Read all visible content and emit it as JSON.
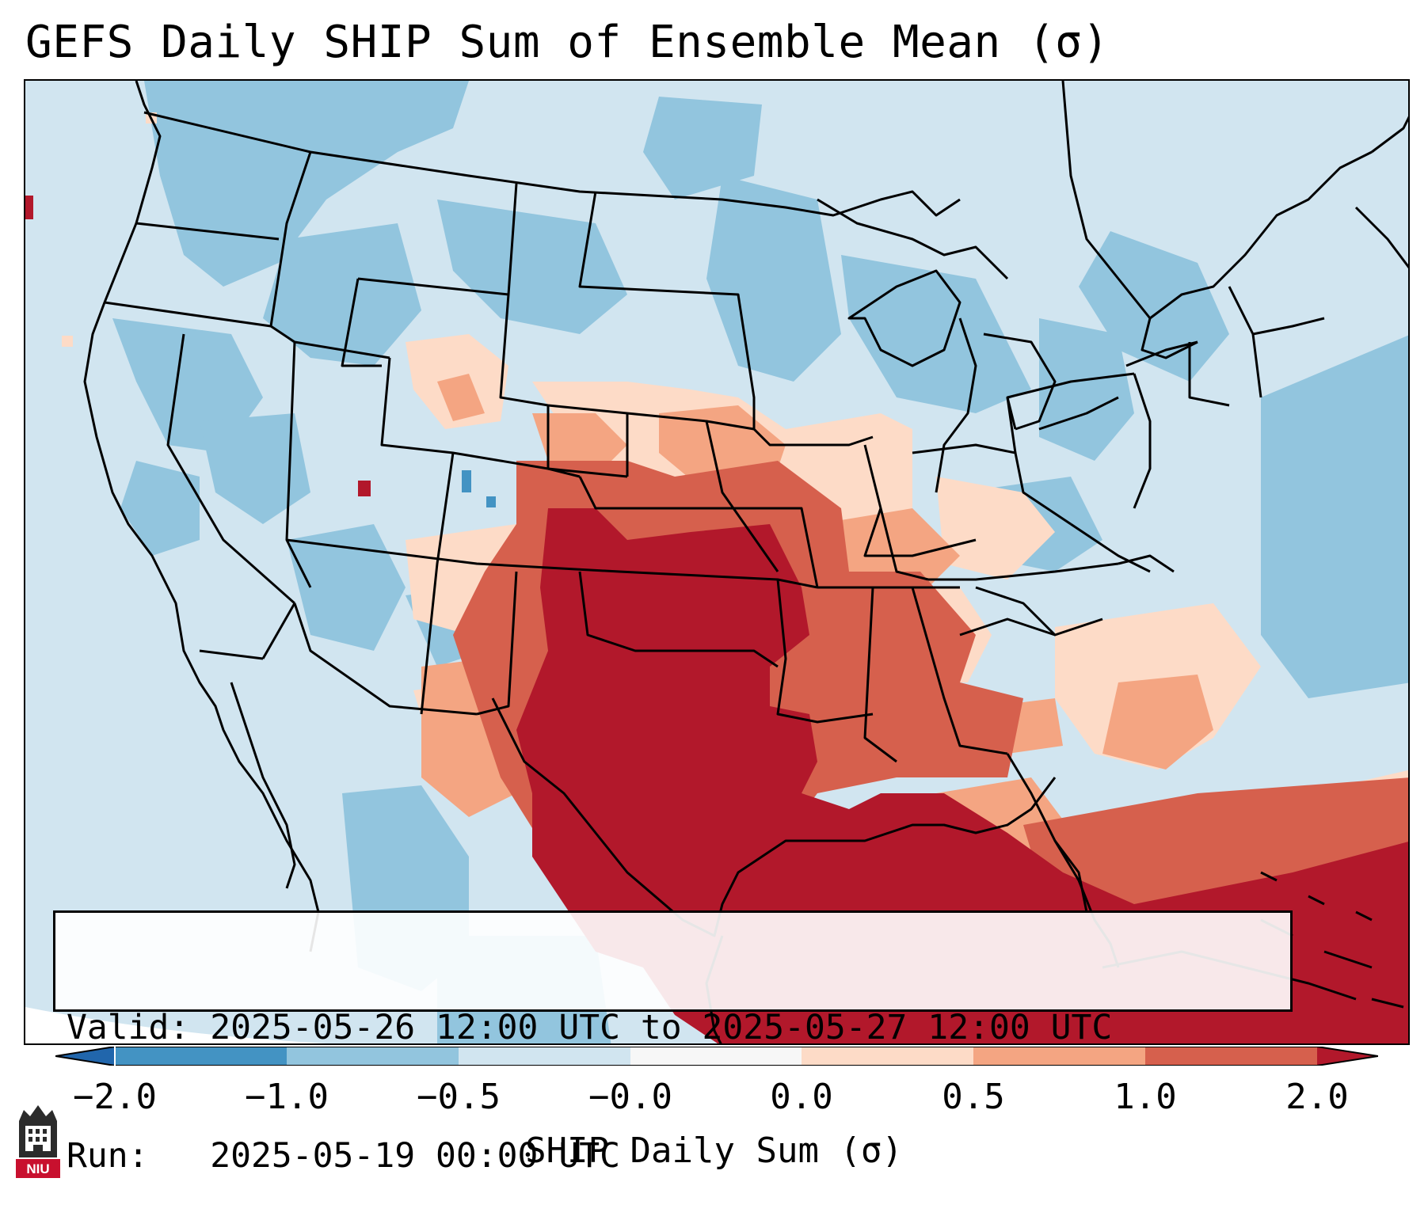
{
  "title": "GEFS Daily SHIP Sum of Ensemble Mean (σ)",
  "info": {
    "valid_line": "Valid: 2025-05-26 12:00 UTC to 2025-05-27 12:00 UTC",
    "run_line": "Run:   2025-05-19 00:00 UTC"
  },
  "colorbar": {
    "label": "SHIP Daily Sum (σ)",
    "ticks": [
      "−2.0",
      "−1.0",
      "−0.5",
      "−0.0",
      "0.0",
      "0.5",
      "1.0",
      "2.0"
    ],
    "bins": [
      {
        "range": "< -2.0",
        "color": "#2166ac"
      },
      {
        "range": "-2.0 to -1.0",
        "color": "#4393c3"
      },
      {
        "range": "-1.0 to -0.5",
        "color": "#92c5de"
      },
      {
        "range": "-0.5 to -0.0",
        "color": "#d1e5f0"
      },
      {
        "range": "-0.0 to 0.0",
        "color": "#f7f7f7"
      },
      {
        "range": "0.0 to 0.5",
        "color": "#fddbc7"
      },
      {
        "range": "0.5 to 1.0",
        "color": "#f4a582"
      },
      {
        "range": "1.0 to 2.0",
        "color": "#d6604d"
      },
      {
        "range": "> 2.0",
        "color": "#b2182b"
      }
    ]
  },
  "logo": {
    "text": "NIU",
    "color": "#c8102e"
  },
  "colors": {
    "outline": "#000000",
    "background": "#ffffff"
  }
}
